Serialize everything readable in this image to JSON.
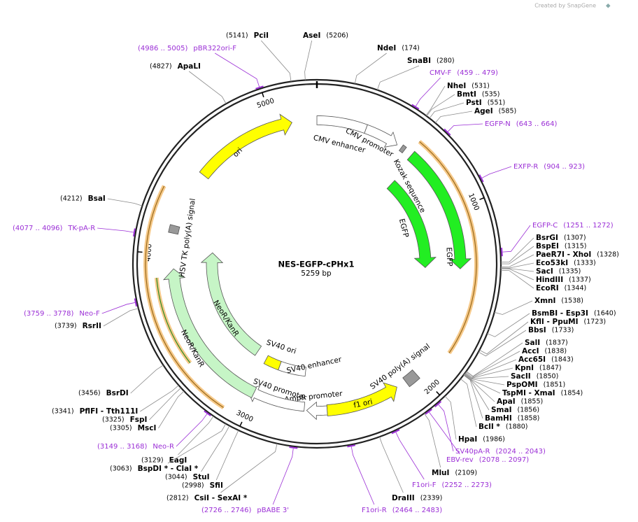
{
  "credit": "Created by SnapGene",
  "title": "NES-EGFP-cPHx1",
  "size": "5259 bp",
  "ticks": [
    "1000",
    "2000",
    "3000",
    "4000",
    "5000"
  ],
  "enzymes": [
    {
      "name": "NdeI",
      "pos": "(174)"
    },
    {
      "name": "SnaBI",
      "pos": "(280)"
    },
    {
      "name": "NheI",
      "pos": "(531)"
    },
    {
      "name": "BmtI",
      "pos": "(535)"
    },
    {
      "name": "PstI",
      "pos": "(551)"
    },
    {
      "name": "AgeI",
      "pos": "(585)"
    },
    {
      "name": "BsrGI",
      "pos": "(1307)"
    },
    {
      "name": "BspEI",
      "pos": "(1315)"
    },
    {
      "name": "PaeR7I - XhoI",
      "pos": "(1328)"
    },
    {
      "name": "Eco53kI",
      "pos": "(1333)"
    },
    {
      "name": "SacI",
      "pos": "(1335)"
    },
    {
      "name": "HindIII",
      "pos": "(1337)"
    },
    {
      "name": "EcoRI",
      "pos": "(1344)"
    },
    {
      "name": "XmnI",
      "pos": "(1538)"
    },
    {
      "name": "BsmBI - Esp3I",
      "pos": "(1640)"
    },
    {
      "name": "KflI - PpuMI",
      "pos": "(1723)"
    },
    {
      "name": "BbsI",
      "pos": "(1733)"
    },
    {
      "name": "SalI",
      "pos": "(1837)"
    },
    {
      "name": "AccI",
      "pos": "(1838)"
    },
    {
      "name": "Acc65I",
      "pos": "(1843)"
    },
    {
      "name": "KpnI",
      "pos": "(1847)"
    },
    {
      "name": "SacII",
      "pos": "(1850)"
    },
    {
      "name": "PspOMI",
      "pos": "(1851)"
    },
    {
      "name": "TspMI - XmaI",
      "pos": "(1854)"
    },
    {
      "name": "ApaI",
      "pos": "(1855)"
    },
    {
      "name": "SmaI",
      "pos": "(1856)"
    },
    {
      "name": "BamHI",
      "pos": "(1858)"
    },
    {
      "name": "BclI *",
      "pos": "(1880)"
    },
    {
      "name": "HpaI",
      "pos": "(1986)"
    },
    {
      "name": "MluI",
      "pos": "(2109)"
    },
    {
      "name": "DraIII",
      "pos": "(2339)"
    },
    {
      "name": "AseI",
      "pos": "(5206)"
    },
    {
      "name": "PciI",
      "pos": "(5141)"
    },
    {
      "name": "ApaLI",
      "pos": "(4827)"
    },
    {
      "name": "BsaI",
      "pos": "(4212)"
    },
    {
      "name": "RsrII",
      "pos": "(3739)"
    },
    {
      "name": "BsrDI",
      "pos": "(3456)"
    },
    {
      "name": "PflFI - Tth111I",
      "pos": "(3341)"
    },
    {
      "name": "FspI",
      "pos": "(3325)"
    },
    {
      "name": "MscI",
      "pos": "(3305)"
    },
    {
      "name": "EagI",
      "pos": "(3129)"
    },
    {
      "name": "BspDI * - ClaI *",
      "pos": "(3063)"
    },
    {
      "name": "StuI",
      "pos": "(3044)"
    },
    {
      "name": "SfiI",
      "pos": "(2998)"
    },
    {
      "name": "CsiI - SexAI *",
      "pos": "(2812)"
    }
  ],
  "primers": [
    {
      "name": "CMV-F",
      "range": "(459 .. 479)"
    },
    {
      "name": "EGFP-N",
      "range": "(643 .. 664)"
    },
    {
      "name": "EXFP-R",
      "range": "(904 .. 923)"
    },
    {
      "name": "EGFP-C",
      "range": "(1251 .. 1272)"
    },
    {
      "name": "SV40pA-R",
      "range": "(2024 .. 2043)"
    },
    {
      "name": "EBV-rev",
      "range": "(2078 .. 2097)"
    },
    {
      "name": "F1ori-F",
      "range": "(2252 .. 2273)"
    },
    {
      "name": "F1ori-R",
      "range": "(2464 .. 2483)"
    },
    {
      "name": "pBR322ori-F",
      "range": "(4986 .. 5005)"
    },
    {
      "name": "TK-pA-R",
      "range": "(4077 .. 4096)"
    },
    {
      "name": "Neo-F",
      "range": "(3759 .. 3778)"
    },
    {
      "name": "Neo-R",
      "range": "(3149 .. 3168)"
    },
    {
      "name": "pBABE 3'",
      "range": "(2726 .. 2746)"
    }
  ],
  "features": [
    "ori",
    "CMV enhancer",
    "CMV promoter",
    "Kozak sequence",
    "EGFP",
    "EGFP",
    "SV40 poly(A) signal",
    "f1 ori",
    "AmpR promoter",
    "SV40 promoter",
    "SV40 ori",
    "SV40 enhancer",
    "NeoR/KanR",
    "NeoR/KanR",
    "HSV TK poly(A) signal"
  ]
}
